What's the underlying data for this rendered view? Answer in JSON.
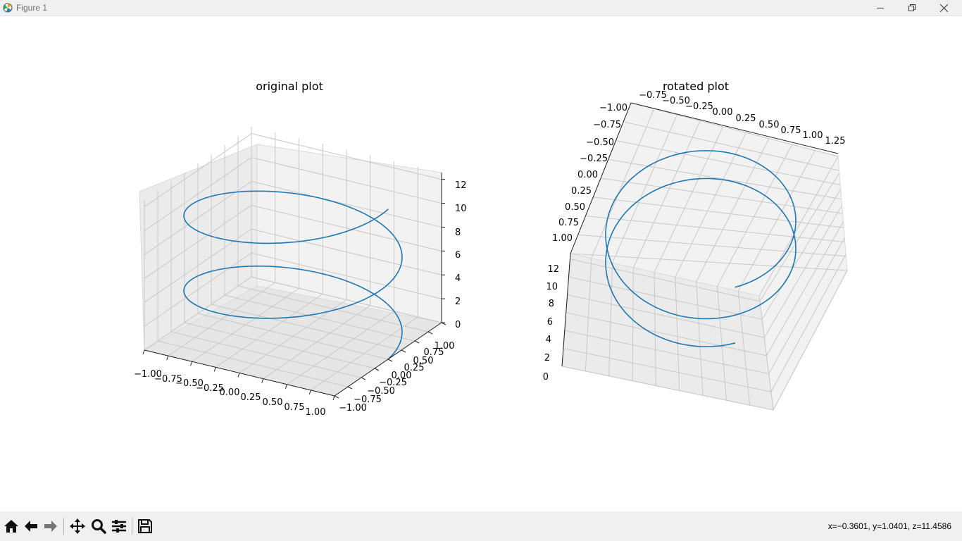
{
  "window": {
    "title": "Figure 1"
  },
  "colors": {
    "series": "#1f77b4",
    "pane": "#f2f2f2",
    "grid": "#c8c8c8"
  },
  "toolbar": {
    "buttons": [
      "home-icon",
      "back-arrow-icon",
      "forward-arrow-icon",
      "pan-icon",
      "zoom-icon",
      "configure-subplots-icon",
      "save-icon"
    ],
    "coordinates": "x=−0.3601, y=1.0401, z=11.4586"
  },
  "chart_data": [
    {
      "type": "line3d",
      "title": "original plot",
      "series": [
        {
          "x_equals": "cos(t)",
          "y_equals": "sin(t)",
          "z_equals": "t",
          "t_range": [
            0,
            12.57
          ]
        }
      ],
      "x_ticks": [
        "−1.00",
        "−0.75",
        "−0.50",
        "−0.25",
        "0.00",
        "0.25",
        "0.50",
        "0.75",
        "1.00"
      ],
      "y_ticks": [
        "−1.00",
        "−0.75",
        "−0.50",
        "−0.25",
        "0.00",
        "0.25",
        "0.50",
        "0.75",
        "1.00"
      ],
      "z_ticks": [
        "0",
        "2",
        "4",
        "6",
        "8",
        "10",
        "12"
      ],
      "xlim": [
        -1,
        1
      ],
      "ylim": [
        -1,
        1
      ],
      "zlim": [
        0,
        12.57
      ],
      "grid": true
    },
    {
      "type": "line3d",
      "title": "rotated plot",
      "series": [
        {
          "x_equals": "cos(t)",
          "y_equals": "sin(t)",
          "z_equals": "t",
          "t_range": [
            0,
            12.57
          ]
        }
      ],
      "x_ticks": [
        "−0.75",
        "−0.50",
        "−0.25",
        "0.00",
        "0.25",
        "0.50",
        "0.75",
        "1.00",
        "1.25"
      ],
      "y_ticks": [
        "−1.00",
        "−0.75",
        "−0.50",
        "−0.25",
        "0.00",
        "0.25",
        "0.50",
        "0.75",
        "1.00"
      ],
      "z_ticks": [
        "0",
        "2",
        "4",
        "6",
        "8",
        "10",
        "12"
      ],
      "grid": true
    }
  ]
}
